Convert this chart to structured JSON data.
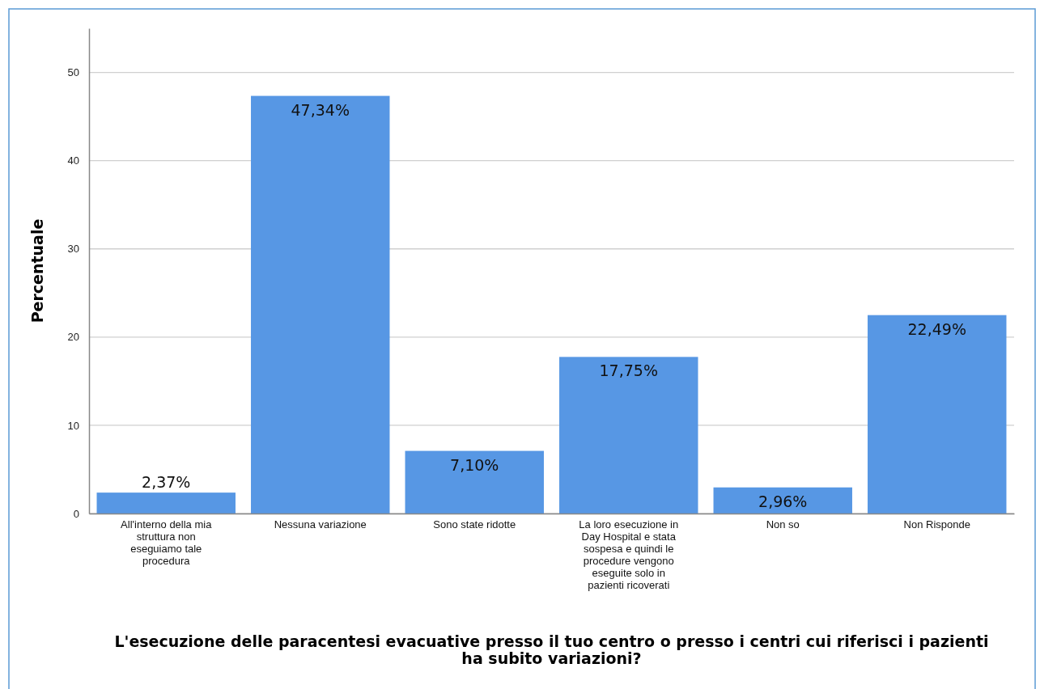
{
  "chart_data": {
    "type": "bar",
    "xlabel": "L'esecuzione delle paracentesi evacuative presso il tuo centro o presso i centri cui riferisci i pazienti ha subito variazioni?",
    "ylabel": "Percentuale",
    "categories": [
      "All'interno della mia struttura non eseguiamo tale procedura",
      "Nessuna variazione",
      "Sono state ridotte",
      "La loro esecuzione in Day Hospital e stata sospesa e quindi le procedure vengono eseguite solo in pazienti ricoverati",
      "Non so",
      "Non Risponde"
    ],
    "values": [
      2.37,
      47.34,
      7.1,
      17.75,
      2.96,
      22.49
    ],
    "value_labels": [
      "2,37%",
      "47,34%",
      "7,10%",
      "17,75%",
      "2,96%",
      "22,49%"
    ],
    "color": "#5797e4",
    "ylim": [
      0,
      55
    ],
    "yticks": [
      0,
      10,
      20,
      30,
      40,
      50
    ],
    "grid": "y"
  }
}
